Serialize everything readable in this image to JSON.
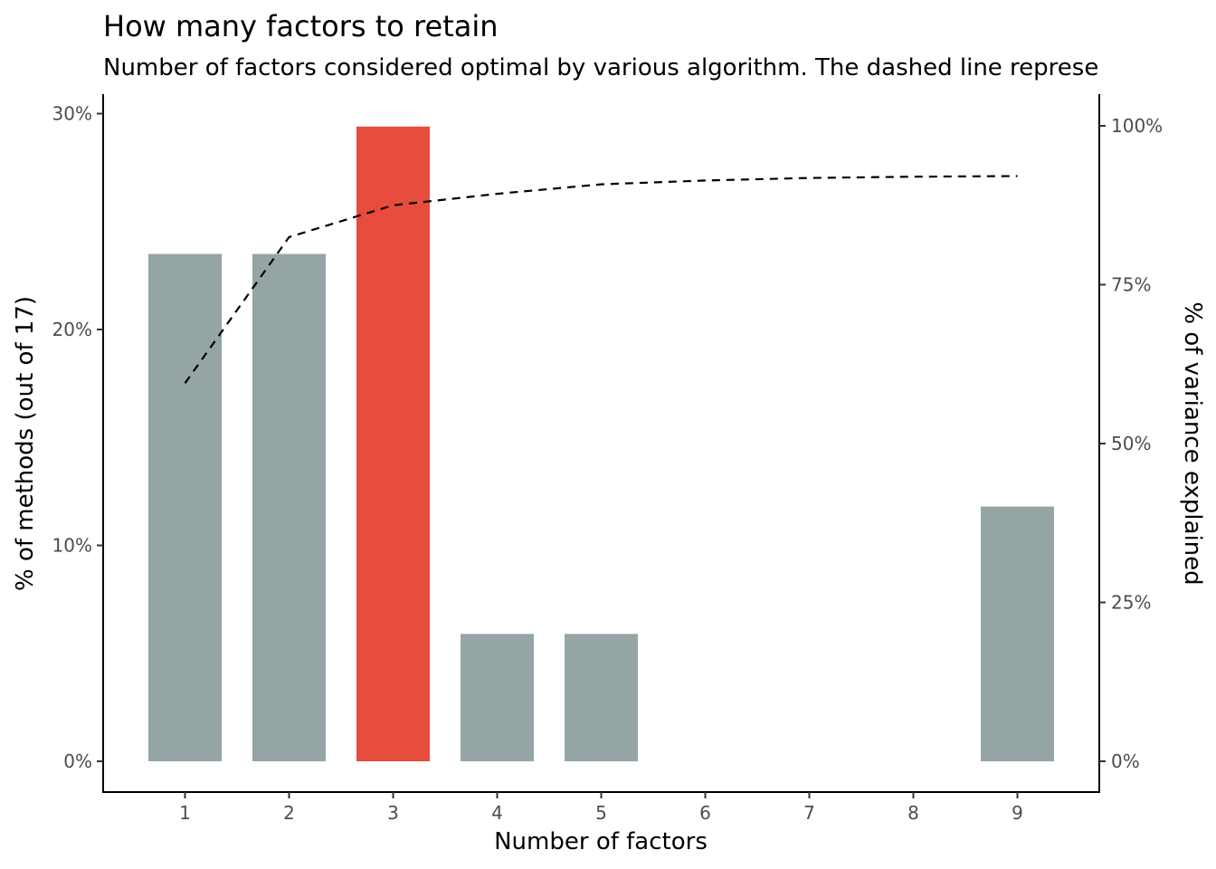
{
  "chart_data": {
    "type": "bar",
    "title": "How many factors to retain",
    "subtitle": "Number of factors considered optimal by various algorithm. The dashed line represe",
    "xlabel": "Number of factors",
    "ylabel": "% of methods (out of 17)",
    "y2label": "% of variance explained",
    "categories": [
      "1",
      "2",
      "3",
      "4",
      "5",
      "6",
      "7",
      "8",
      "9"
    ],
    "x_tick_labels": [
      "1",
      "2",
      "3",
      "4",
      "5",
      "6",
      "7",
      "8",
      "9"
    ],
    "bars": [
      {
        "x": 1,
        "value": 23.5,
        "highlight": false
      },
      {
        "x": 2,
        "value": 23.5,
        "highlight": false
      },
      {
        "x": 3,
        "value": 29.4,
        "highlight": true
      },
      {
        "x": 4,
        "value": 5.9,
        "highlight": false
      },
      {
        "x": 5,
        "value": 5.9,
        "highlight": false
      },
      {
        "x": 9,
        "value": 11.8,
        "highlight": false
      }
    ],
    "variance_line": {
      "style": "dashed",
      "color": "#000000",
      "x": [
        1,
        2,
        3,
        4,
        5,
        6,
        7,
        8,
        9
      ],
      "y": [
        59.5,
        82.5,
        87.5,
        89.3,
        90.8,
        91.4,
        91.8,
        92.0,
        92.1
      ]
    },
    "ylim": [
      0,
      30
    ],
    "y2lim": [
      0,
      100
    ],
    "y_ticks": [
      0,
      10,
      20,
      30
    ],
    "y_tick_labels": [
      "0%",
      "10%",
      "20%",
      "30%"
    ],
    "y2_ticks": [
      0,
      25,
      50,
      75,
      100
    ],
    "y2_tick_labels": [
      "0%",
      "25%",
      "50%",
      "75%",
      "100%"
    ],
    "grid": false,
    "colors": {
      "bar": "#95a5a6",
      "highlight": "#e74c3c",
      "line": "#000000"
    }
  }
}
